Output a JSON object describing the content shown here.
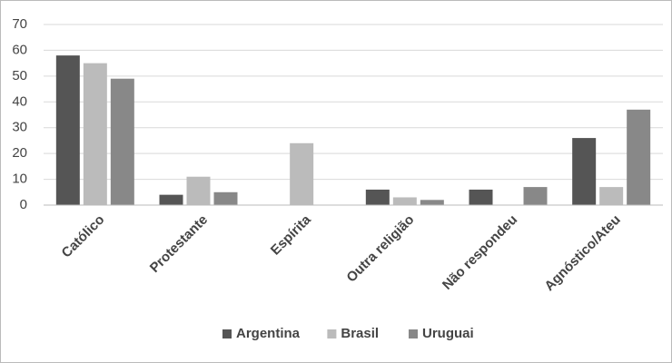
{
  "chart_data": {
    "type": "bar",
    "categories": [
      "Católico",
      "Protestante",
      "Espírita",
      "Outra religião",
      "Não respondeu",
      "Agnóstico/Ateu"
    ],
    "series": [
      {
        "name": "Argentina",
        "color": "#555555",
        "values": [
          58,
          4,
          0,
          6,
          6,
          26
        ]
      },
      {
        "name": "Brasil",
        "color": "#bbbbbb",
        "values": [
          55,
          11,
          24,
          3,
          0,
          7
        ]
      },
      {
        "name": "Uruguai",
        "color": "#888888",
        "values": [
          49,
          5,
          0,
          2,
          7,
          37
        ]
      }
    ],
    "ylim": [
      0,
      70
    ],
    "yticks": [
      0,
      10,
      20,
      30,
      40,
      50,
      60,
      70
    ],
    "grid": true,
    "legend": "bottom"
  }
}
